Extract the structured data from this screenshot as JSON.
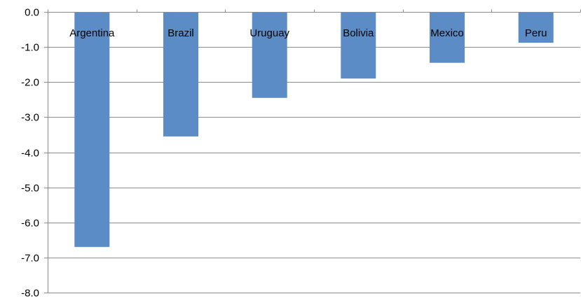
{
  "chart_data": {
    "type": "bar",
    "title": "",
    "xlabel": "",
    "ylabel": "",
    "categories": [
      "Argentina",
      "Brazil",
      "Uruguay",
      "Bolivia",
      "Mexico",
      "Peru"
    ],
    "values": [
      -6.7,
      -3.55,
      -2.45,
      -1.9,
      -1.45,
      -0.88
    ],
    "ylim": [
      -8.0,
      0.0
    ],
    "yticks": [
      "0.0",
      "-1.0",
      "-2.0",
      "-3.0",
      "-4.0",
      "-5.0",
      "-6.0",
      "-7.0",
      "-8.0"
    ],
    "ytick_values": [
      0,
      -1,
      -2,
      -3,
      -4,
      -5,
      -6,
      -7,
      -8
    ],
    "grid": true,
    "category_labels_position": "top",
    "legend": "none",
    "colors": {
      "bar": "#5b8cc6",
      "grid": "#8c8c8c",
      "text": "#000000"
    }
  }
}
